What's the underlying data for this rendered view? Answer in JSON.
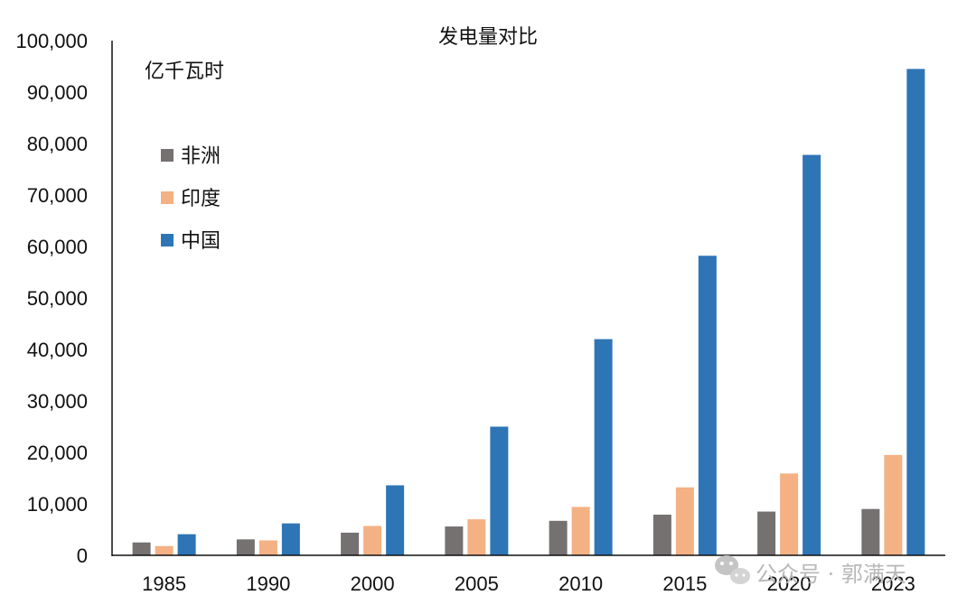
{
  "chart_data": {
    "type": "bar",
    "title": "发电量对比",
    "ylabel": "亿千瓦时",
    "xlabel": "",
    "categories": [
      "1985",
      "1990",
      "2000",
      "2005",
      "2010",
      "2015",
      "2020",
      "2023"
    ],
    "series": [
      {
        "name": "非洲",
        "color": "#767171",
        "values": [
          2500,
          3100,
          4400,
          5600,
          6700,
          7900,
          8500,
          9000
        ]
      },
      {
        "name": "印度",
        "color": "#F4B183",
        "values": [
          1800,
          2900,
          5700,
          7000,
          9400,
          13200,
          15900,
          19500
        ]
      },
      {
        "name": "中国",
        "color": "#2E75B6",
        "values": [
          4100,
          6200,
          13600,
          25000,
          42000,
          58200,
          77800,
          94500
        ]
      }
    ],
    "ylim": [
      0,
      100000
    ],
    "yticks": [
      "0",
      "10,000",
      "20,000",
      "30,000",
      "40,000",
      "50,000",
      "60,000",
      "70,000",
      "80,000",
      "90,000",
      "100,000"
    ],
    "grid": false,
    "legend_position": "top-left"
  },
  "watermark": {
    "text": "公众号 · 郭满天",
    "icon": "wechat-icon"
  }
}
